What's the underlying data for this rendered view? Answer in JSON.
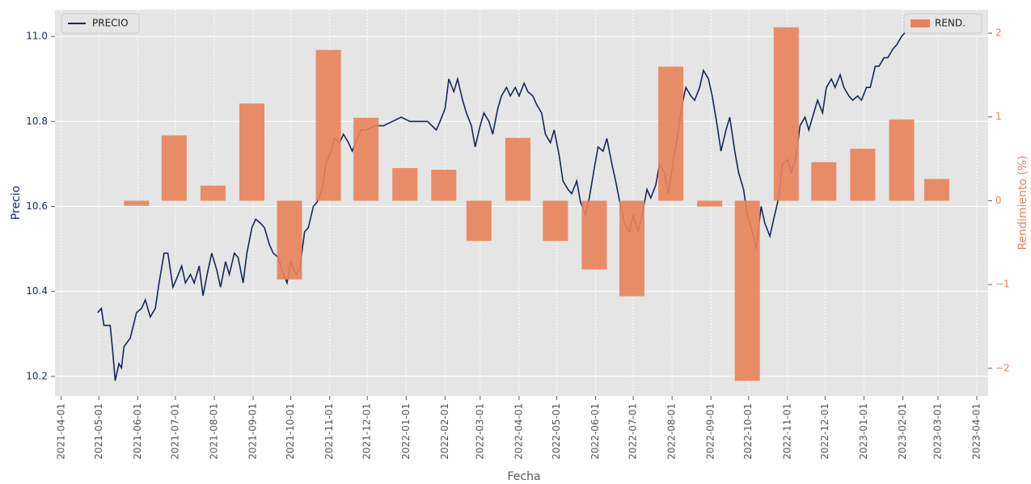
{
  "chart_data": {
    "type": "combo",
    "xlabel": "Fecha",
    "ylabel": "Precio",
    "y2label": "Rendimiento (%)",
    "xlim": [
      "2021-03-27",
      "2023-04-10"
    ],
    "xticks": [
      "2021-04-01",
      "2021-05-01",
      "2021-06-01",
      "2021-07-01",
      "2021-08-01",
      "2021-09-01",
      "2021-10-01",
      "2021-11-01",
      "2021-12-01",
      "2022-01-01",
      "2022-02-01",
      "2022-03-01",
      "2022-04-01",
      "2022-05-01",
      "2022-06-01",
      "2022-07-01",
      "2022-08-01",
      "2022-09-01",
      "2022-10-01",
      "2022-11-01",
      "2022-12-01",
      "2023-01-01",
      "2023-02-01",
      "2023-03-01",
      "2023-04-01"
    ],
    "ylim": [
      10.154,
      11.063
    ],
    "yticks": [
      10.2,
      10.4,
      10.6,
      10.8,
      {
        "value": 11,
        "label": "11.0"
      }
    ],
    "y2lim": [
      -2.33,
      2.28
    ],
    "y2ticks": [
      {
        "value": -2,
        "label": "−2"
      },
      {
        "value": -1,
        "label": "−1"
      },
      0,
      1,
      2
    ],
    "grid": true,
    "series": [
      {
        "name": "PRECIO",
        "type": "line",
        "color": "#14285a",
        "legend_loc": "upper left",
        "x": [
          "2021-04-30",
          "2021-05-03",
          "2021-05-05",
          "2021-05-10",
          "2021-05-12",
          "2021-05-14",
          "2021-05-17",
          "2021-05-19",
          "2021-05-21",
          "2021-05-26",
          "2021-05-31",
          "2021-06-04",
          "2021-06-07",
          "2021-06-11",
          "2021-06-15",
          "2021-06-18",
          "2021-06-22",
          "2021-06-25",
          "2021-06-29",
          "2021-07-02",
          "2021-07-06",
          "2021-07-09",
          "2021-07-13",
          "2021-07-16",
          "2021-07-20",
          "2021-07-23",
          "2021-07-27",
          "2021-07-30",
          "2021-08-03",
          "2021-08-06",
          "2021-08-10",
          "2021-08-13",
          "2021-08-17",
          "2021-08-20",
          "2021-08-24",
          "2021-08-27",
          "2021-08-31",
          "2021-09-03",
          "2021-09-07",
          "2021-09-10",
          "2021-09-14",
          "2021-09-17",
          "2021-09-21",
          "2021-09-24",
          "2021-09-28",
          "2021-10-01",
          "2021-10-05",
          "2021-10-08",
          "2021-10-12",
          "2021-10-15",
          "2021-10-19",
          "2021-10-22",
          "2021-10-26",
          "2021-10-29",
          "2021-11-02",
          "2021-11-05",
          "2021-11-09",
          "2021-11-12",
          "2021-11-16",
          "2021-11-19",
          "2021-11-23",
          "2021-11-26",
          "2021-11-30",
          "2021-12-07",
          "2021-12-14",
          "2021-12-21",
          "2021-12-28",
          "2022-01-04",
          "2022-01-11",
          "2022-01-18",
          "2022-01-25",
          "2022-01-28",
          "2022-02-01",
          "2022-02-04",
          "2022-02-08",
          "2022-02-11",
          "2022-02-15",
          "2022-02-18",
          "2022-02-22",
          "2022-02-25",
          "2022-03-01",
          "2022-03-04",
          "2022-03-08",
          "2022-03-11",
          "2022-03-15",
          "2022-03-18",
          "2022-03-22",
          "2022-03-25",
          "2022-03-29",
          "2022-04-01",
          "2022-04-05",
          "2022-04-08",
          "2022-04-12",
          "2022-04-15",
          "2022-04-19",
          "2022-04-22",
          "2022-04-26",
          "2022-04-29",
          "2022-05-03",
          "2022-05-06",
          "2022-05-10",
          "2022-05-13",
          "2022-05-17",
          "2022-05-20",
          "2022-05-24",
          "2022-05-27",
          "2022-05-31",
          "2022-06-03",
          "2022-06-07",
          "2022-06-10",
          "2022-06-14",
          "2022-06-17",
          "2022-06-21",
          "2022-06-24",
          "2022-06-28",
          "2022-07-01",
          "2022-07-05",
          "2022-07-08",
          "2022-07-12",
          "2022-07-15",
          "2022-07-19",
          "2022-07-22",
          "2022-07-26",
          "2022-07-29",
          "2022-08-02",
          "2022-08-05",
          "2022-08-09",
          "2022-08-12",
          "2022-08-16",
          "2022-08-19",
          "2022-08-23",
          "2022-08-26",
          "2022-08-30",
          "2022-09-02",
          "2022-09-06",
          "2022-09-09",
          "2022-09-13",
          "2022-09-16",
          "2022-09-20",
          "2022-09-23",
          "2022-09-27",
          "2022-09-30",
          "2022-10-04",
          "2022-10-07",
          "2022-10-11",
          "2022-10-14",
          "2022-10-18",
          "2022-10-21",
          "2022-10-25",
          "2022-10-28",
          "2022-11-01",
          "2022-11-04",
          "2022-11-08",
          "2022-11-11",
          "2022-11-15",
          "2022-11-18",
          "2022-11-22",
          "2022-11-25",
          "2022-11-29",
          "2022-12-02",
          "2022-12-06",
          "2022-12-09",
          "2022-12-13",
          "2022-12-16",
          "2022-12-20",
          "2022-12-23",
          "2022-12-27",
          "2022-12-30",
          "2023-01-03",
          "2023-01-06",
          "2023-01-10",
          "2023-01-13",
          "2023-01-17",
          "2023-01-20",
          "2023-01-24",
          "2023-01-27",
          "2023-01-31",
          "2023-02-03",
          "2023-02-07",
          "2023-02-10"
        ],
        "values": [
          10.35,
          10.36,
          10.32,
          10.32,
          10.26,
          10.19,
          10.23,
          10.22,
          10.27,
          10.29,
          10.35,
          10.36,
          10.38,
          10.34,
          10.36,
          10.42,
          10.49,
          10.49,
          10.41,
          10.43,
          10.46,
          10.42,
          10.44,
          10.42,
          10.46,
          10.39,
          10.45,
          10.49,
          10.45,
          10.41,
          10.47,
          10.44,
          10.49,
          10.48,
          10.42,
          10.49,
          10.55,
          10.57,
          10.56,
          10.55,
          10.51,
          10.49,
          10.48,
          10.45,
          10.42,
          10.47,
          10.44,
          10.45,
          10.54,
          10.55,
          10.6,
          10.61,
          10.64,
          10.7,
          10.73,
          10.76,
          10.75,
          10.77,
          10.75,
          10.73,
          10.76,
          10.78,
          10.78,
          10.79,
          10.79,
          10.8,
          10.81,
          10.8,
          10.8,
          10.8,
          10.78,
          10.8,
          10.83,
          10.9,
          10.87,
          10.9,
          10.85,
          10.82,
          10.79,
          10.74,
          10.79,
          10.82,
          10.8,
          10.77,
          10.83,
          10.86,
          10.88,
          10.86,
          10.88,
          10.86,
          10.89,
          10.87,
          10.86,
          10.84,
          10.82,
          10.77,
          10.75,
          10.78,
          10.72,
          10.66,
          10.64,
          10.63,
          10.66,
          10.61,
          10.58,
          10.62,
          10.69,
          10.74,
          10.73,
          10.76,
          10.7,
          10.66,
          10.6,
          10.56,
          10.54,
          10.58,
          10.54,
          10.58,
          10.64,
          10.62,
          10.65,
          10.7,
          10.68,
          10.63,
          10.71,
          10.76,
          10.84,
          10.88,
          10.86,
          10.85,
          10.88,
          10.92,
          10.9,
          10.86,
          10.79,
          10.73,
          10.78,
          10.81,
          10.73,
          10.68,
          10.64,
          10.58,
          10.54,
          10.5,
          10.6,
          10.56,
          10.53,
          10.57,
          10.62,
          10.7,
          10.71,
          10.68,
          10.72,
          10.79,
          10.81,
          10.78,
          10.82,
          10.85,
          10.82,
          10.88,
          10.9,
          10.88,
          10.91,
          10.88,
          10.86,
          10.85,
          10.86,
          10.85,
          10.88,
          10.88,
          10.93,
          10.93,
          10.95,
          10.95,
          10.97,
          10.98,
          11,
          11.01,
          11.02,
          11.01
        ]
      },
      {
        "name": "REND.",
        "type": "bar",
        "axis": "y2",
        "color": "#e8825a",
        "legend_loc": "upper right",
        "x": [
          "2021-05-31",
          "2021-06-30",
          "2021-07-31",
          "2021-08-31",
          "2021-09-30",
          "2021-10-31",
          "2021-11-30",
          "2021-12-31",
          "2022-01-31",
          "2022-02-28",
          "2022-03-31",
          "2022-04-30",
          "2022-05-31",
          "2022-06-30",
          "2022-07-31",
          "2022-08-31",
          "2022-09-30",
          "2022-10-31",
          "2022-11-30",
          "2022-12-31",
          "2023-01-31",
          "2023-02-28"
        ],
        "values": [
          -0.06,
          0.78,
          0.18,
          1.16,
          -0.94,
          1.8,
          0.99,
          0.39,
          0.37,
          -0.48,
          0.75,
          -0.48,
          -0.82,
          -1.14,
          1.6,
          -0.07,
          -2.15,
          2.07,
          0.46,
          0.62,
          0.97,
          0.26
        ]
      }
    ]
  }
}
